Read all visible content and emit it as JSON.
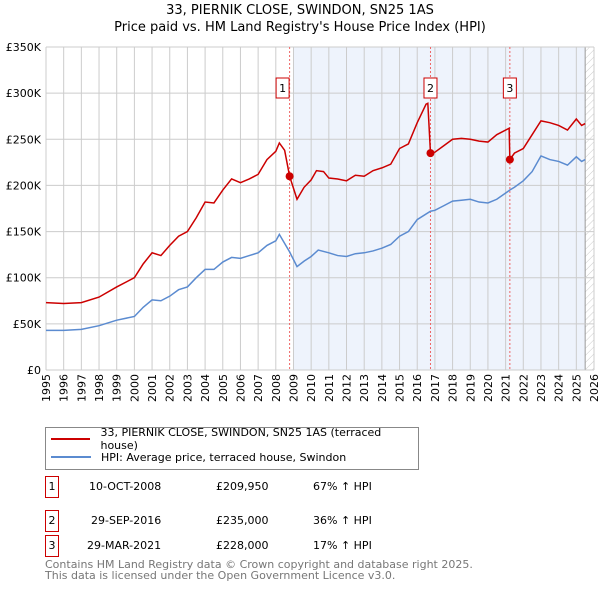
{
  "chart_data": {
    "type": "line",
    "title": "33, PIERNIK CLOSE, SWINDON, SN25 1AS",
    "subtitle": "Price paid vs. HM Land Registry's House Price Index (HPI)",
    "xlim": [
      1995,
      2026
    ],
    "ylim": [
      0,
      350000
    ],
    "y_ticks": [
      {
        "v": 0,
        "label": "£0"
      },
      {
        "v": 50000,
        "label": "£50K"
      },
      {
        "v": 100000,
        "label": "£100K"
      },
      {
        "v": 150000,
        "label": "£150K"
      },
      {
        "v": 200000,
        "label": "£200K"
      },
      {
        "v": 250000,
        "label": "£250K"
      },
      {
        "v": 300000,
        "label": "£300K"
      },
      {
        "v": 350000,
        "label": "£350K"
      }
    ],
    "x_ticks": [
      "1995",
      "1996",
      "1997",
      "1998",
      "1999",
      "2000",
      "2001",
      "2002",
      "2003",
      "2004",
      "2005",
      "2006",
      "2007",
      "2008",
      "2009",
      "2010",
      "2011",
      "2012",
      "2013",
      "2014",
      "2015",
      "2016",
      "2017",
      "2018",
      "2019",
      "2020",
      "2021",
      "2022",
      "2023",
      "2024",
      "2025",
      "2026"
    ],
    "grid": true,
    "series": [
      {
        "name": "33, PIERNIK CLOSE, SWINDON, SN25 1AS (terraced house)",
        "color": "#cc0000",
        "x": [
          1995,
          1996,
          1997,
          1998,
          1999,
          2000,
          2000.5,
          2001,
          2001.5,
          2002,
          2002.5,
          2003,
          2003.5,
          2004,
          2004.5,
          2005,
          2005.5,
          2006,
          2006.5,
          2007,
          2007.5,
          2008,
          2008.2,
          2008.5,
          2008.78,
          2009.2,
          2009.6,
          2010,
          2010.3,
          2010.7,
          2011,
          2011.5,
          2012,
          2012.5,
          2013,
          2013.5,
          2014,
          2014.5,
          2015,
          2015.5,
          2016,
          2016.5,
          2016.6,
          2016.75,
          2017,
          2017.5,
          2018,
          2018.5,
          2019,
          2019.5,
          2020,
          2020.5,
          2021.2,
          2021.24,
          2021.5,
          2022,
          2022.5,
          2023,
          2023.5,
          2024,
          2024.5,
          2025,
          2025.3,
          2025.5
        ],
        "y": [
          73000,
          72000,
          73000,
          79000,
          90000,
          100000,
          115000,
          127000,
          124000,
          135000,
          145000,
          150000,
          165000,
          182000,
          181000,
          195000,
          207000,
          203000,
          207000,
          212000,
          228000,
          237000,
          246000,
          238000,
          210000,
          185000,
          198000,
          206000,
          216000,
          215000,
          208000,
          207000,
          205000,
          211000,
          210000,
          216000,
          219000,
          223000,
          240000,
          245000,
          268000,
          288000,
          289000,
          235000,
          236000,
          243000,
          250000,
          251000,
          250000,
          248000,
          247000,
          255000,
          262000,
          228000,
          235000,
          240000,
          255000,
          270000,
          268000,
          265000,
          260000,
          272000,
          265000,
          267000
        ]
      },
      {
        "name": "HPI: Average price, terraced house, Swindon",
        "color": "#5b8bd0",
        "x": [
          1995,
          1996,
          1997,
          1998,
          1999,
          2000,
          2000.5,
          2001,
          2001.5,
          2002,
          2002.5,
          2003,
          2003.5,
          2004,
          2004.5,
          2005,
          2005.5,
          2006,
          2006.5,
          2007,
          2007.5,
          2008,
          2008.2,
          2008.78,
          2009.2,
          2009.6,
          2010,
          2010.4,
          2011,
          2011.5,
          2012,
          2012.5,
          2013,
          2013.5,
          2014,
          2014.5,
          2015,
          2015.5,
          2016,
          2016.75,
          2017,
          2017.5,
          2018,
          2018.5,
          2019,
          2019.5,
          2020,
          2020.5,
          2021.24,
          2021.5,
          2022,
          2022.5,
          2023,
          2023.5,
          2024,
          2024.5,
          2025,
          2025.3,
          2025.5
        ],
        "y": [
          43000,
          43000,
          44000,
          48000,
          54000,
          58000,
          68000,
          76000,
          75000,
          80000,
          87000,
          90000,
          100000,
          109000,
          109000,
          117000,
          122000,
          121000,
          124000,
          127000,
          135000,
          140000,
          147000,
          128000,
          112000,
          118000,
          123000,
          130000,
          127000,
          124000,
          123000,
          126000,
          127000,
          129000,
          132000,
          136000,
          145000,
          150000,
          163000,
          172000,
          173000,
          178000,
          183000,
          184000,
          185000,
          182000,
          181000,
          185000,
          195000,
          198000,
          205000,
          215000,
          232000,
          228000,
          226000,
          222000,
          231000,
          226000,
          228000
        ]
      }
    ],
    "sales": [
      {
        "label": "1",
        "x": 2008.78,
        "price": 209950,
        "date": "10-OCT-2008",
        "price_text": "£209,950",
        "hpi": "67% ↑ HPI"
      },
      {
        "label": "2",
        "x": 2016.75,
        "price": 235000,
        "date": "29-SEP-2016",
        "price_text": "£235,000",
        "hpi": "36% ↑ HPI"
      },
      {
        "label": "3",
        "x": 2021.24,
        "price": 228000,
        "date": "29-MAR-2021",
        "price_text": "£228,000",
        "hpi": "17% ↑ HPI"
      }
    ],
    "shade_from": 2009.0,
    "hatch_from": 2025.5
  },
  "footer": {
    "line1": "Contains HM Land Registry data © Crown copyright and database right 2025.",
    "line2": "This data is licensed under the Open Government Licence v3.0."
  }
}
